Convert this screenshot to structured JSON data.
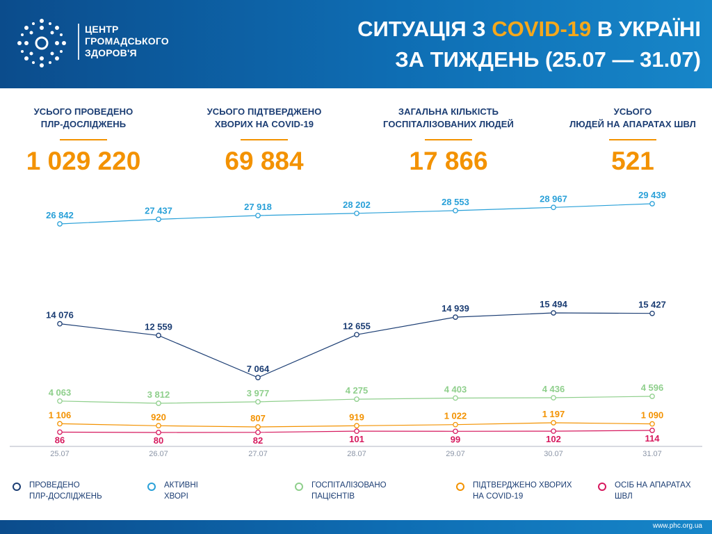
{
  "header": {
    "org_line1": "ЦЕНТР",
    "org_line2": "ГРОМАДСЬКОГО",
    "org_line3": "ЗДОРОВ'Я",
    "title_part1": "СИТУАЦІЯ З ",
    "title_highlight": "COVID-19",
    "title_part2": " В УКРАЇНІ",
    "title_line2": "ЗА ТИЖДЕНЬ (25.07 — 31.07)"
  },
  "stats": [
    {
      "label": "УСЬОГО ПРОВЕДЕНО\nПЛР-ДОСЛІДЖЕНЬ",
      "value": "1 029 220"
    },
    {
      "label": "УСЬОГО ПІДТВЕРДЖЕНО\nХВОРИХ НА COVID-19",
      "value": "69 884"
    },
    {
      "label": "ЗАГАЛЬНА КІЛЬКІСТЬ\nГОСПІТАЛІЗОВАНИХ ЛЮДЕЙ",
      "value": "17 866"
    },
    {
      "label": "УСЬОГО\nЛЮДЕЙ НА АПАРАТАХ ШВЛ",
      "value": "521"
    }
  ],
  "chart_data": {
    "type": "line",
    "x": [
      "25.07",
      "26.07",
      "27.07",
      "28.07",
      "29.07",
      "30.07",
      "31.07"
    ],
    "series": [
      {
        "name": "АКТИВНІ ХВОРІ",
        "color": "#29a0d8",
        "values": [
          26842,
          27437,
          27918,
          28202,
          28553,
          28967,
          29439
        ],
        "labels": [
          "26 842",
          "27 437",
          "27 918",
          "28 202",
          "28 553",
          "28 967",
          "29 439"
        ]
      },
      {
        "name": "ПРОВЕДЕНО ПЛР-ДОСЛІДЖЕНЬ",
        "color": "#1b3d73",
        "values": [
          14076,
          12559,
          7064,
          12655,
          14939,
          15494,
          15427
        ],
        "labels": [
          "14 076",
          "12 559",
          "7 064",
          "12 655",
          "14 939",
          "15 494",
          "15 427"
        ]
      },
      {
        "name": "ГОСПІТАЛІЗОВАНО ПАЦІЄНТІВ",
        "color": "#8fcf8c",
        "values": [
          4063,
          3812,
          3977,
          4275,
          4403,
          4436,
          4596
        ],
        "labels": [
          "4 063",
          "3 812",
          "3 977",
          "4 275",
          "4 403",
          "4 436",
          "4 596"
        ]
      },
      {
        "name": "ПІДТВЕРДЖЕНО ХВОРИХ НА COVID-19",
        "color": "#f39200",
        "values": [
          1106,
          920,
          807,
          919,
          1022,
          1197,
          1090
        ],
        "labels": [
          "1 106",
          "920",
          "807",
          "919",
          "1 022",
          "1 197",
          "1 090"
        ]
      },
      {
        "name": "ОСІБ НА АПАРАТАХ ШВЛ",
        "color": "#d6195e",
        "values": [
          86,
          80,
          82,
          101,
          99,
          102,
          114
        ],
        "labels": [
          "86",
          "80",
          "82",
          "101",
          "99",
          "102",
          "114"
        ]
      }
    ]
  },
  "legend": [
    {
      "text": "ПРОВЕДЕНО\nПЛР-ДОСЛІДЖЕНЬ",
      "color": "#1b3d73"
    },
    {
      "text": "АКТИВНІ\nХВОРІ",
      "color": "#29a0d8"
    },
    {
      "text": "ГОСПІТАЛІЗОВАНО\nПАЦІЄНТІВ",
      "color": "#8fcf8c"
    },
    {
      "text": "ПІДТВЕРДЖЕНО ХВОРИХ\nНА COVID-19",
      "color": "#f39200"
    },
    {
      "text": "ОСІБ НА АПАРАТАХ\nШВЛ",
      "color": "#d6195e"
    }
  ],
  "footer": {
    "url": "www.phc.org.ua"
  }
}
